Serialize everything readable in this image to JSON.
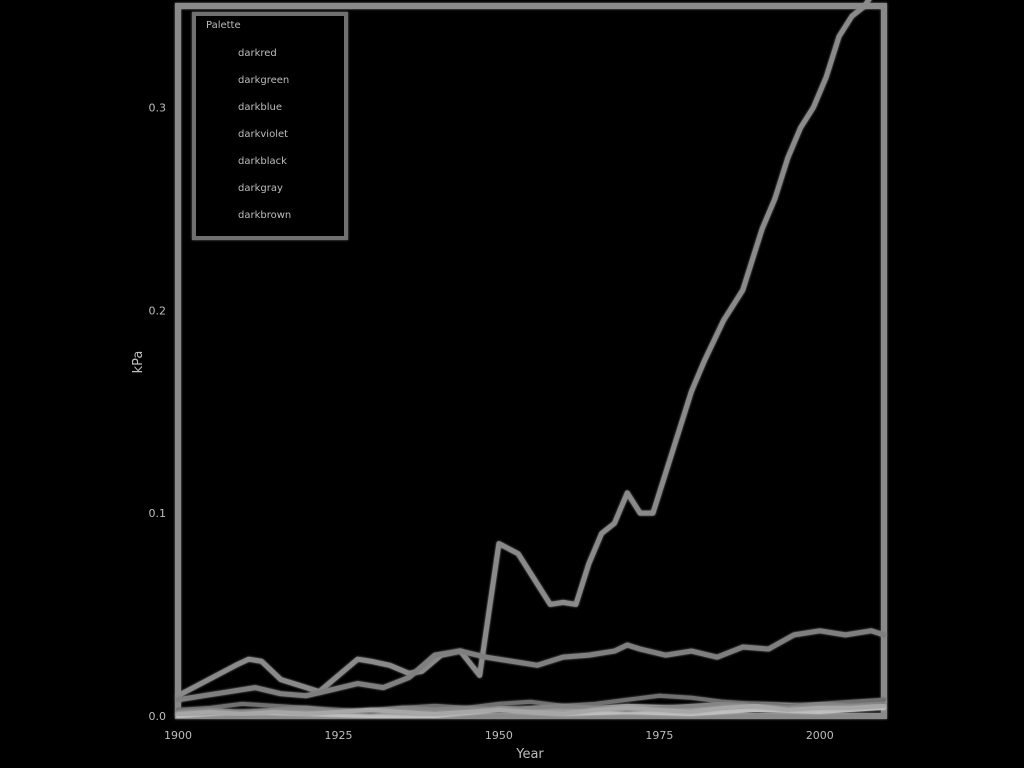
{
  "chart_data": {
    "type": "line",
    "title": "",
    "xlabel": "Year",
    "ylabel": "kPa",
    "xlim": [
      1900,
      2010
    ],
    "ylim": [
      0,
      0.35
    ],
    "x_ticks": [
      1900,
      1925,
      1950,
      1975,
      2000
    ],
    "y_ticks": [
      0.0,
      0.1,
      0.2,
      0.3
    ],
    "y_tick_labels": [
      "0.0",
      "0.1",
      "0.2",
      "0.3"
    ],
    "grid": false,
    "legend": {
      "title": "Palette",
      "placement": "top-left"
    },
    "series": [
      {
        "name": "darkred",
        "x": [
          1900,
          1903,
          1906,
          1909,
          1911,
          1913,
          1916,
          1919,
          1922,
          1925,
          1928,
          1930,
          1933,
          1936,
          1938,
          1941,
          1944,
          1947,
          1950,
          1953,
          1956,
          1958,
          1960,
          1962,
          1964,
          1966,
          1968,
          1970,
          1972,
          1974,
          1976,
          1978,
          1980,
          1982,
          1985,
          1988,
          1991,
          1993,
          1995,
          1997,
          1999,
          2001,
          2003,
          2005,
          2007,
          2008,
          2010
        ],
        "values": [
          0.01,
          0.015,
          0.02,
          0.025,
          0.028,
          0.027,
          0.018,
          0.015,
          0.012,
          0.02,
          0.028,
          0.027,
          0.025,
          0.021,
          0.022,
          0.03,
          0.032,
          0.02,
          0.085,
          0.08,
          0.065,
          0.055,
          0.056,
          0.055,
          0.075,
          0.09,
          0.095,
          0.11,
          0.1,
          0.1,
          0.12,
          0.14,
          0.16,
          0.175,
          0.195,
          0.21,
          0.24,
          0.255,
          0.275,
          0.29,
          0.3,
          0.315,
          0.335,
          0.345,
          0.35,
          0.355,
          0.36
        ]
      },
      {
        "name": "darkgreen",
        "x": [
          1900,
          1910,
          1920,
          1930,
          1940,
          1950,
          1960,
          1970,
          1980,
          1990,
          2000,
          2010
        ],
        "values": [
          0.0,
          0.002,
          0.001,
          0.0,
          0.0,
          0.003,
          0.001,
          0.002,
          0.001,
          0.003,
          0.002,
          0.004
        ]
      },
      {
        "name": "darkblue",
        "x": [
          1900,
          1904,
          1908,
          1912,
          1916,
          1920,
          1924,
          1928,
          1932,
          1936,
          1940,
          1944,
          1948,
          1952,
          1956,
          1960,
          1964,
          1968,
          1970,
          1972,
          1976,
          1980,
          1984,
          1988,
          1992,
          1996,
          2000,
          2004,
          2008,
          2010
        ],
        "values": [
          0.008,
          0.01,
          0.012,
          0.014,
          0.011,
          0.01,
          0.013,
          0.016,
          0.014,
          0.019,
          0.03,
          0.032,
          0.029,
          0.027,
          0.025,
          0.029,
          0.03,
          0.032,
          0.035,
          0.033,
          0.03,
          0.032,
          0.029,
          0.034,
          0.033,
          0.04,
          0.042,
          0.04,
          0.042,
          0.04
        ]
      },
      {
        "name": "darkviolet",
        "x": [
          1900,
          1910,
          1920,
          1930,
          1940,
          1950,
          1960,
          1970,
          1980,
          1990,
          2000,
          2010
        ],
        "values": [
          0.001,
          0.002,
          0.003,
          0.002,
          0.001,
          0.004,
          0.003,
          0.005,
          0.004,
          0.006,
          0.005,
          0.007
        ]
      },
      {
        "name": "darkblack",
        "x": [
          1900,
          1905,
          1910,
          1915,
          1920,
          1925,
          1930,
          1935,
          1940,
          1945,
          1950,
          1955,
          1960,
          1965,
          1970,
          1975,
          1980,
          1985,
          1990,
          1995,
          2000,
          2005,
          2010
        ],
        "values": [
          0.003,
          0.004,
          0.006,
          0.005,
          0.004,
          0.003,
          0.002,
          0.004,
          0.005,
          0.004,
          0.006,
          0.007,
          0.005,
          0.006,
          0.008,
          0.01,
          0.009,
          0.007,
          0.006,
          0.005,
          0.006,
          0.007,
          0.008
        ]
      },
      {
        "name": "darkgray",
        "x": [
          1900,
          1905,
          1910,
          1915,
          1920,
          1925,
          1930,
          1935,
          1940,
          1945,
          1950,
          1955,
          1960,
          1965,
          1970,
          1975,
          1980,
          1985,
          1990,
          1995,
          2000,
          2005,
          2010
        ],
        "values": [
          0.002,
          0.003,
          0.002,
          0.003,
          0.004,
          0.002,
          0.003,
          0.004,
          0.003,
          0.004,
          0.003,
          0.004,
          0.005,
          0.004,
          0.003,
          0.004,
          0.005,
          0.006,
          0.005,
          0.004,
          0.006,
          0.005,
          0.006
        ]
      },
      {
        "name": "darkbrown",
        "x": [
          1900,
          1905,
          1910,
          1915,
          1920,
          1925,
          1930,
          1935,
          1940,
          1945,
          1950,
          1955,
          1960,
          1965,
          1970,
          1975,
          1980,
          1985,
          1990,
          1995,
          2000,
          2005,
          2010
        ],
        "values": [
          0.001,
          0.002,
          0.001,
          0.002,
          0.001,
          0.002,
          0.003,
          0.002,
          0.001,
          0.002,
          0.003,
          0.002,
          0.001,
          0.003,
          0.004,
          0.003,
          0.002,
          0.004,
          0.005,
          0.003,
          0.004,
          0.004,
          0.005
        ]
      }
    ],
    "colors": {
      "background": "#000000",
      "frame": "#8a8a8a",
      "text": "#bdbdbd",
      "series": [
        "#8a8a8a",
        "#bfbfbf",
        "#7f7f7f",
        "#9b9b9b",
        "#6f6f6f",
        "#858585",
        "#a7a7a7"
      ]
    }
  }
}
